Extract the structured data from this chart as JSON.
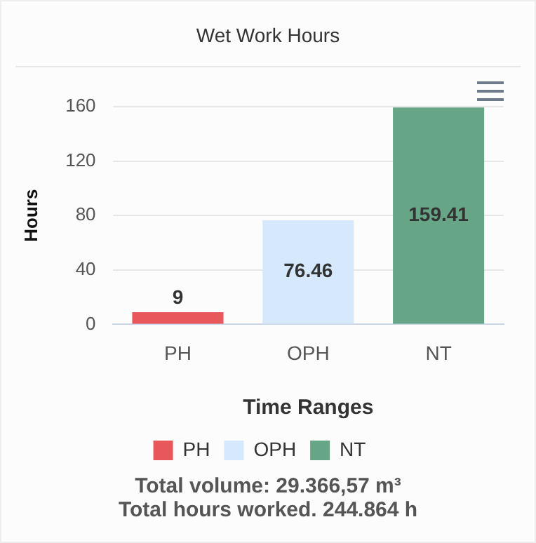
{
  "chart_data": {
    "type": "bar",
    "title": "Wet Work Hours",
    "xlabel": "Time Ranges",
    "ylabel": "Hours",
    "categories": [
      "PH",
      "OPH",
      "NT"
    ],
    "series": [
      {
        "name": "PH",
        "color": "#e8575a",
        "values": [
          9,
          null,
          null
        ]
      },
      {
        "name": "OPH",
        "color": "#d6e8fc",
        "values": [
          null,
          76.46,
          null
        ]
      },
      {
        "name": "NT",
        "color": "#66a586",
        "values": [
          null,
          null,
          159.41
        ]
      }
    ],
    "ylim": [
      0,
      160
    ],
    "yticks": [
      0,
      40,
      80,
      120,
      160
    ],
    "grid": "y",
    "legend": "bottom",
    "data_labels": true,
    "annotations": [
      "Total volume: 29.366,57 m³",
      "Total hours worked. 244.864 h"
    ]
  }
}
